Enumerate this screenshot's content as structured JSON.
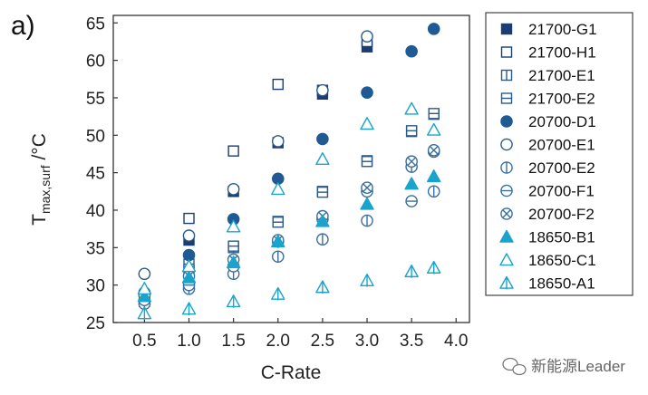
{
  "panel_label": "a)",
  "watermark": {
    "text": "新能源Leader",
    "icon": "wechat-bubble-icon"
  },
  "chart_data": {
    "type": "scatter",
    "xlabel": "C-Rate",
    "ylabel": {
      "main": "T",
      "sub": "max,surf",
      "unit": " /°C"
    },
    "xlim": [
      0.15,
      4.15
    ],
    "ylim": [
      25,
      66
    ],
    "xticks": [
      "0.5",
      "1.0",
      "1.5",
      "2.0",
      "2.5",
      "3.0",
      "3.5",
      "4.0"
    ],
    "yticks": [
      "25",
      "30",
      "35",
      "40",
      "45",
      "50",
      "55",
      "60",
      "65"
    ],
    "grid": false,
    "legend_position": "right",
    "series": [
      {
        "name": "21700-G1",
        "marker": "square-filled",
        "color": "#1a3d73",
        "x": [
          0.5,
          1.0,
          1.5,
          2.0,
          2.5,
          3.0
        ],
        "y": [
          28.0,
          36.0,
          42.5,
          49.0,
          55.5,
          61.8
        ]
      },
      {
        "name": "21700-H1",
        "marker": "square-open",
        "color": "#1a3d73",
        "x": [
          0.5,
          1.0,
          1.5,
          2.0,
          2.5,
          3.0
        ],
        "y": [
          28.5,
          38.9,
          47.9,
          56.8,
          56.0,
          62.5
        ]
      },
      {
        "name": "21700-E1",
        "marker": "square-vbar",
        "color": "#2a5a8c",
        "x": [
          0.5,
          1.0,
          1.5,
          2.0,
          2.5,
          3.0,
          3.5,
          3.75
        ],
        "y": [
          27.8,
          32.0,
          35.0,
          38.5,
          42.5,
          46.6,
          50.5,
          52.8
        ]
      },
      {
        "name": "21700-E2",
        "marker": "square-hbar",
        "color": "#2a5a8c",
        "x": [
          0.5,
          1.0,
          1.5,
          2.0,
          2.5,
          3.0,
          3.5,
          3.75
        ],
        "y": [
          28.2,
          32.8,
          35.2,
          38.4,
          42.4,
          46.5,
          50.6,
          52.9
        ]
      },
      {
        "name": "20700-D1",
        "marker": "circle-filled",
        "color": "#1f5a94",
        "x": [
          0.5,
          1.0,
          1.5,
          2.0,
          2.5,
          3.0,
          3.5,
          3.75
        ],
        "y": [
          29.0,
          34.0,
          38.8,
          44.2,
          49.5,
          55.7,
          61.2,
          64.2
        ]
      },
      {
        "name": "20700-E1",
        "marker": "circle-open",
        "color": "#2a5a8c",
        "x": [
          0.5,
          1.0,
          1.5,
          2.0,
          2.5,
          3.0
        ],
        "y": [
          31.5,
          36.6,
          42.8,
          49.2,
          56.0,
          63.2
        ]
      },
      {
        "name": "20700-E2",
        "marker": "circle-vbar",
        "color": "#3a6e9e",
        "x": [
          0.5,
          1.0,
          1.5,
          2.0,
          2.5,
          3.0,
          3.5,
          3.75
        ],
        "y": [
          27.5,
          29.5,
          31.5,
          33.8,
          36.1,
          38.6,
          45.8,
          42.5
        ]
      },
      {
        "name": "20700-F1",
        "marker": "circle-hbar",
        "color": "#3a6e9e",
        "x": [
          0.5,
          1.0,
          1.5,
          2.0,
          2.5,
          3.0,
          3.5,
          3.75
        ],
        "y": [
          28.0,
          30.0,
          32.5,
          35.8,
          38.8,
          42.5,
          41.2,
          47.8
        ]
      },
      {
        "name": "20700-F2",
        "marker": "circle-x",
        "color": "#3a6e9e",
        "x": [
          0.5,
          1.0,
          1.5,
          2.0,
          2.5,
          3.0,
          3.5,
          3.75
        ],
        "y": [
          28.6,
          31.2,
          33.4,
          36.0,
          39.2,
          43.0,
          46.5,
          48.0
        ]
      },
      {
        "name": "18650-B1",
        "marker": "triangle-filled",
        "color": "#1aa3cc",
        "x": [
          0.5,
          1.0,
          1.5,
          2.0,
          2.5,
          3.0,
          3.5,
          3.75
        ],
        "y": [
          28.5,
          31.0,
          33.0,
          35.8,
          38.5,
          40.8,
          43.5,
          44.5
        ]
      },
      {
        "name": "18650-C1",
        "marker": "triangle-open",
        "color": "#1aa3cc",
        "x": [
          0.5,
          1.0,
          1.5,
          2.0,
          2.5,
          3.0,
          3.5,
          3.75
        ],
        "y": [
          29.5,
          32.5,
          37.8,
          42.8,
          46.8,
          51.5,
          53.5,
          50.7
        ]
      },
      {
        "name": "18650-A1",
        "marker": "triangle-vbar",
        "color": "#1aa3cc",
        "x": [
          0.5,
          1.0,
          1.5,
          2.0,
          2.5,
          3.0,
          3.5,
          3.75
        ],
        "y": [
          26.2,
          26.8,
          27.8,
          28.8,
          29.7,
          30.6,
          31.8,
          32.3
        ]
      }
    ]
  }
}
